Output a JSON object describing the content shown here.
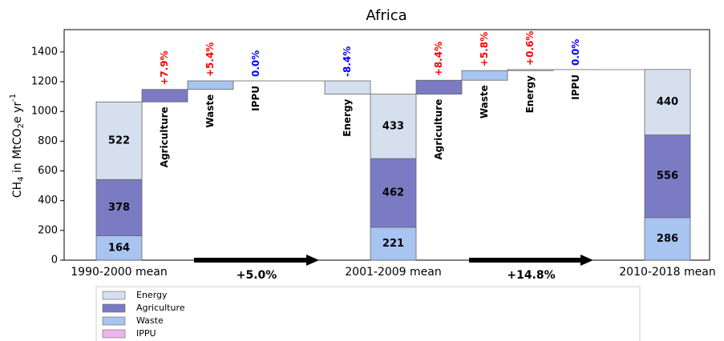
{
  "chart_data": {
    "type": "waterfall",
    "title": "Africa",
    "ylabel": {
      "main": "CH",
      "sub1": "4",
      "mid": " in  MtCO",
      "sub2": "2",
      "tail": "e yr",
      "sup": "-1"
    },
    "categories": [
      "1990-2000 mean",
      "2001-2009 mean",
      "2010-2018 mean"
    ],
    "series": [
      {
        "name": "Energy",
        "color": "#d5dfee",
        "values": [
          522,
          433,
          440
        ]
      },
      {
        "name": "Agriculture",
        "color": "#7b7bc4",
        "values": [
          378,
          462,
          556
        ]
      },
      {
        "name": "Waste",
        "color": "#a8c4f0",
        "values": [
          164,
          221,
          286
        ]
      },
      {
        "name": "IPPU",
        "color": "#eeb4ec",
        "values": [
          0,
          0,
          0
        ]
      }
    ],
    "steps": [
      {
        "names": [
          "Agriculture",
          "Waste",
          "IPPU",
          "Energy"
        ],
        "values": [
          7.9,
          5.4,
          0.0,
          -8.4
        ],
        "value_labels": [
          "+7.9%",
          "+5.4%",
          "0.0%",
          "-8.4%"
        ]
      },
      {
        "names": [
          "Agriculture",
          "Waste",
          "Energy",
          "IPPU"
        ],
        "values": [
          8.4,
          5.8,
          0.6,
          0.0
        ],
        "value_labels": [
          "+8.4%",
          "+5.8%",
          "+0.6%",
          "0.0%"
        ]
      }
    ],
    "period_changes": {
      "values": [
        5.0,
        14.8
      ],
      "value_labels": [
        "+5.0%",
        "+14.8%"
      ]
    },
    "increase_color": "#ff0000",
    "decrease_color": "#0000ff",
    "ylim": [
      0,
      1550
    ],
    "yticks": [
      0,
      200,
      400,
      600,
      800,
      1000,
      1200,
      1400
    ]
  }
}
